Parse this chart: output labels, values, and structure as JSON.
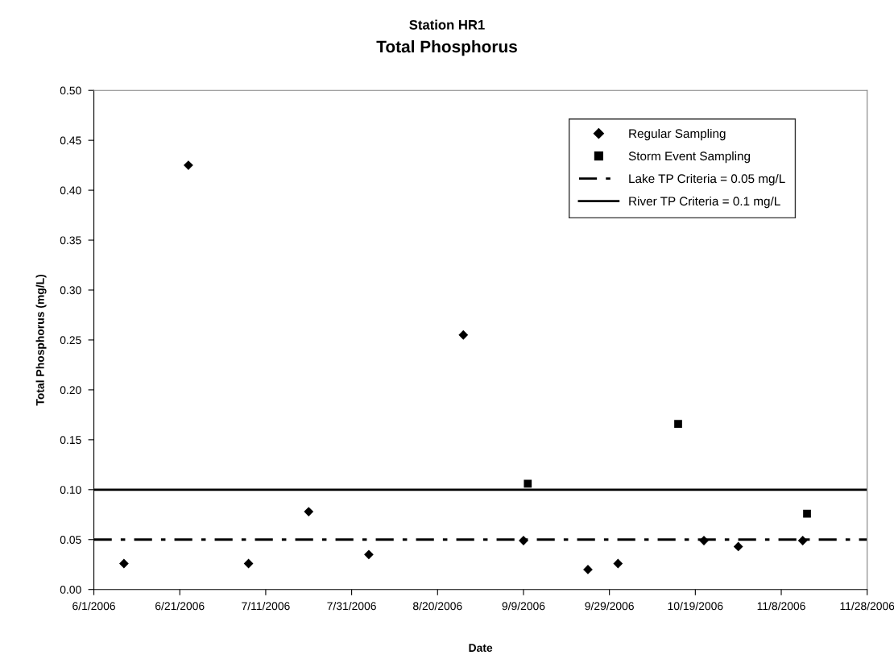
{
  "chart_data": {
    "type": "scatter",
    "title": "Station HR1",
    "subtitle": "Total Phosphorus",
    "xlabel": "Date",
    "ylabel": "Total Phosphorus (mg/L)",
    "series": [
      {
        "name": "Regular Sampling",
        "color": "#000000",
        "marker": "diamond",
        "x": [
          "2006-06-08",
          "2006-06-23",
          "2006-07-07",
          "2006-07-21",
          "2006-08-04",
          "2006-08-26",
          "2006-09-09",
          "2006-09-24",
          "2006-10-01",
          "2006-10-21",
          "2006-10-29",
          "2006-11-13"
        ],
        "values": [
          0.026,
          0.425,
          0.026,
          0.078,
          0.035,
          0.255,
          0.049,
          0.02,
          0.026,
          0.049,
          0.043,
          0.049
        ]
      },
      {
        "name": "Storm Event Sampling",
        "color": "#000000",
        "marker": "square",
        "x": [
          "2006-09-10",
          "2006-10-15",
          "2006-11-14"
        ],
        "values": [
          0.106,
          0.166,
          0.076
        ]
      }
    ],
    "ref_lines": [
      {
        "axis": "y",
        "value": 0.05,
        "label": "Lake TP Criteria = 0.05 mg/L",
        "color": "#000000",
        "line_style": "dashdot"
      },
      {
        "axis": "y",
        "value": 0.1,
        "label": "River TP Criteria = 0.1 mg/L",
        "color": "#000000",
        "line_style": "solid"
      }
    ],
    "xlim": [
      "2006-06-01",
      "2006-11-28"
    ],
    "xticks": [
      {
        "value": "2006-06-01",
        "label": "6/1/2006"
      },
      {
        "value": "2006-06-21",
        "label": "6/21/2006"
      },
      {
        "value": "2006-07-11",
        "label": "7/11/2006"
      },
      {
        "value": "2006-07-31",
        "label": "7/31/2006"
      },
      {
        "value": "2006-08-20",
        "label": "8/20/2006"
      },
      {
        "value": "2006-09-09",
        "label": "9/9/2006"
      },
      {
        "value": "2006-09-29",
        "label": "9/29/2006"
      },
      {
        "value": "2006-10-19",
        "label": "10/19/2006"
      },
      {
        "value": "2006-11-08",
        "label": "11/8/2006"
      },
      {
        "value": "2006-11-28",
        "label": "11/28/2006"
      }
    ],
    "ylim": [
      0,
      0.5
    ],
    "yticks": [
      {
        "value": 0,
        "label": "0.00"
      },
      {
        "value": 0.05,
        "label": "0.05"
      },
      {
        "value": 0.1,
        "label": "0.10"
      },
      {
        "value": 0.15,
        "label": "0.15"
      },
      {
        "value": 0.2,
        "label": "0.20"
      },
      {
        "value": 0.25,
        "label": "0.25"
      },
      {
        "value": 0.3,
        "label": "0.30"
      },
      {
        "value": 0.35,
        "label": "0.35"
      },
      {
        "value": 0.4,
        "label": "0.40"
      },
      {
        "value": 0.45,
        "label": "0.45"
      },
      {
        "value": 0.5,
        "label": "0.50"
      }
    ],
    "grid": false,
    "legend": "top right"
  }
}
